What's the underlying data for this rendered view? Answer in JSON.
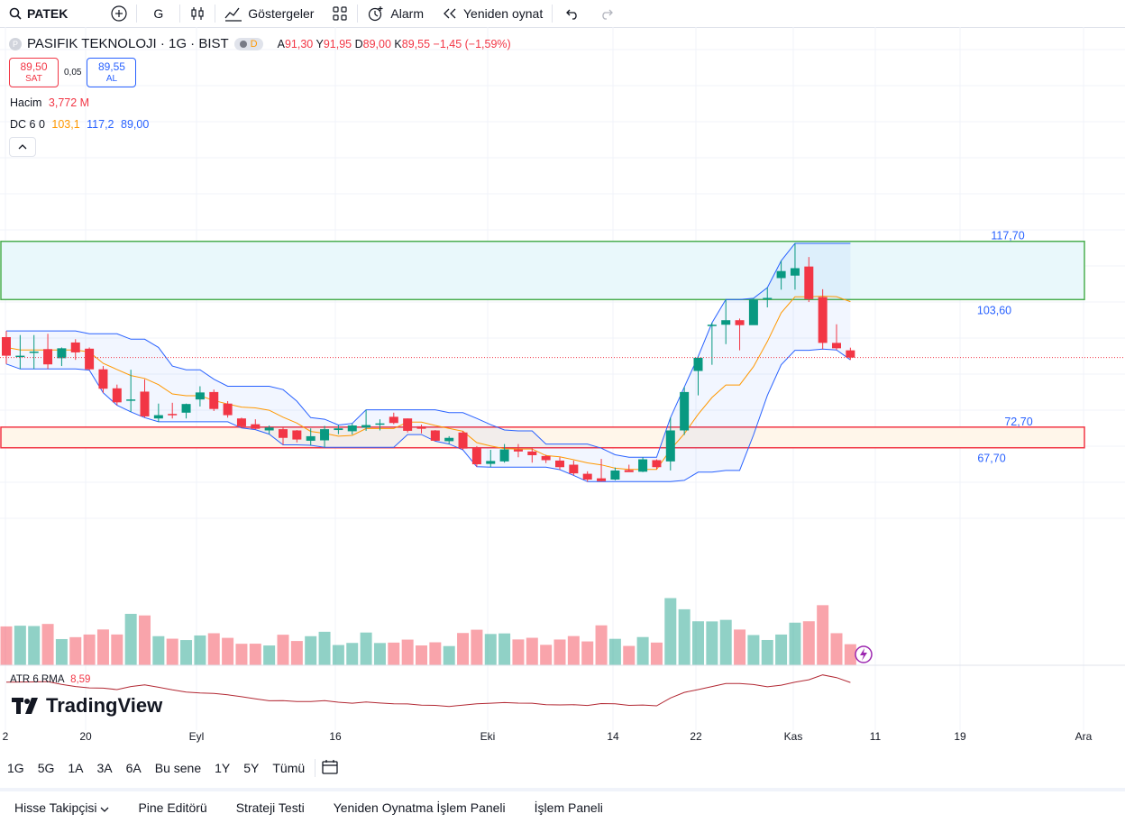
{
  "toolbar": {
    "symbol": "PATEK",
    "interval": "G",
    "indicators_label": "Göstergeler",
    "alarm_label": "Alarm",
    "replay_label": "Yeniden oynat"
  },
  "legend": {
    "title": "PASIFIK TEKNOLOJI · 1G · BIST",
    "status_badge": "D",
    "ohlc_a_label": "A",
    "ohlc_a": "91,30",
    "ohlc_y_label": "Y",
    "ohlc_y": "91,95",
    "ohlc_d_label": "D",
    "ohlc_d": "89,00",
    "ohlc_k_label": "K",
    "ohlc_k": "89,55",
    "change": "−1,45 (−1,59%)",
    "sell_price": "89,50",
    "sell_label": "SAT",
    "spread": "0,05",
    "buy_price": "89,55",
    "buy_label": "AL"
  },
  "volume_legend": {
    "name": "Hacim",
    "value": "3,772 M"
  },
  "dc_legend": {
    "name": "DC 6 0",
    "middle": "103,1",
    "upper": "117,2",
    "lower": "89,00"
  },
  "atr_legend": {
    "name": "ATR 6 RMA",
    "value": "8,59"
  },
  "logo_text": "TradingView",
  "colors": {
    "up": "#089981",
    "down": "#f23645",
    "dc_band": "#2962ff",
    "dc_mid": "#ff9800",
    "atr": "#b22833",
    "zone_green": "#4caf50",
    "zone_red": "#f23645"
  },
  "chart_data": {
    "type": "candlestick",
    "x_tick_labels": [
      "2",
      "20",
      "Eyl",
      "16",
      "Eki",
      "14",
      "22",
      "Kas",
      "11",
      "19",
      "Ara"
    ],
    "candles": [
      {
        "o": 94.5,
        "h": 96.0,
        "l": 88.0,
        "c": 90.0
      },
      {
        "o": 89.7,
        "h": 95.0,
        "l": 86.8,
        "c": 90.0
      },
      {
        "o": 90.9,
        "h": 95.0,
        "l": 86.8,
        "c": 91.0
      },
      {
        "o": 91.6,
        "h": 95.3,
        "l": 86.8,
        "c": 87.9
      },
      {
        "o": 89.4,
        "h": 92.0,
        "l": 87.5,
        "c": 91.8
      },
      {
        "o": 93.2,
        "h": 94.0,
        "l": 89.0,
        "c": 90.8
      },
      {
        "o": 91.7,
        "h": 92.0,
        "l": 86.5,
        "c": 86.7
      },
      {
        "o": 86.7,
        "h": 87.5,
        "l": 81.0,
        "c": 82.0
      },
      {
        "o": 82.1,
        "h": 83.0,
        "l": 78.0,
        "c": 78.7
      },
      {
        "o": 79.2,
        "h": 86.6,
        "l": 76.4,
        "c": 79.4
      },
      {
        "o": 81.3,
        "h": 84.3,
        "l": 75.0,
        "c": 75.3
      },
      {
        "o": 74.8,
        "h": 78.4,
        "l": 74.0,
        "c": 75.6
      },
      {
        "o": 75.9,
        "h": 78.6,
        "l": 74.8,
        "c": 75.6
      },
      {
        "o": 76.2,
        "h": 78.4,
        "l": 74.8,
        "c": 78.3
      },
      {
        "o": 79.4,
        "h": 82.6,
        "l": 77.7,
        "c": 81.1
      },
      {
        "o": 81.2,
        "h": 81.8,
        "l": 76.6,
        "c": 77.1
      },
      {
        "o": 78.4,
        "h": 79.0,
        "l": 75.0,
        "c": 75.6
      },
      {
        "o": 74.8,
        "h": 75.0,
        "l": 72.5,
        "c": 72.9
      },
      {
        "o": 73.4,
        "h": 74.6,
        "l": 72.1,
        "c": 72.3
      },
      {
        "o": 71.9,
        "h": 73.1,
        "l": 71.0,
        "c": 72.6
      },
      {
        "o": 72.2,
        "h": 72.8,
        "l": 68.4,
        "c": 70.1
      },
      {
        "o": 71.9,
        "h": 72.0,
        "l": 69.0,
        "c": 69.7
      },
      {
        "o": 69.4,
        "h": 72.4,
        "l": 68.3,
        "c": 70.5
      },
      {
        "o": 69.5,
        "h": 73.0,
        "l": 67.8,
        "c": 72.2
      },
      {
        "o": 72.0,
        "h": 73.2,
        "l": 71.0,
        "c": 72.4
      },
      {
        "o": 71.7,
        "h": 73.6,
        "l": 70.9,
        "c": 73.1
      },
      {
        "o": 72.6,
        "h": 76.9,
        "l": 71.8,
        "c": 73.2
      },
      {
        "o": 73.3,
        "h": 74.6,
        "l": 71.9,
        "c": 73.6
      },
      {
        "o": 75.2,
        "h": 76.2,
        "l": 73.4,
        "c": 73.7
      },
      {
        "o": 74.8,
        "h": 74.8,
        "l": 71.4,
        "c": 71.8
      },
      {
        "o": 72.9,
        "h": 73.3,
        "l": 71.2,
        "c": 72.3
      },
      {
        "o": 71.9,
        "h": 72.0,
        "l": 69.3,
        "c": 69.4
      },
      {
        "o": 69.3,
        "h": 70.5,
        "l": 68.6,
        "c": 70.1
      },
      {
        "o": 71.4,
        "h": 71.8,
        "l": 67.2,
        "c": 67.5
      },
      {
        "o": 67.8,
        "h": 68.1,
        "l": 63.1,
        "c": 63.7
      },
      {
        "o": 63.8,
        "h": 67.2,
        "l": 63.0,
        "c": 64.5
      },
      {
        "o": 64.4,
        "h": 68.6,
        "l": 64.1,
        "c": 67.3
      },
      {
        "o": 67.3,
        "h": 68.6,
        "l": 65.4,
        "c": 66.8
      },
      {
        "o": 66.8,
        "h": 67.6,
        "l": 64.1,
        "c": 65.9
      },
      {
        "o": 65.7,
        "h": 66.0,
        "l": 64.0,
        "c": 64.7
      },
      {
        "o": 64.6,
        "h": 65.4,
        "l": 62.4,
        "c": 63.0
      },
      {
        "o": 63.6,
        "h": 64.6,
        "l": 61.0,
        "c": 61.5
      },
      {
        "o": 61.4,
        "h": 62.0,
        "l": 59.5,
        "c": 60.0
      },
      {
        "o": 60.3,
        "h": 65.0,
        "l": 59.5,
        "c": 59.6
      },
      {
        "o": 60.0,
        "h": 62.9,
        "l": 59.8,
        "c": 62.2
      },
      {
        "o": 62.3,
        "h": 63.6,
        "l": 61.9,
        "c": 61.8
      },
      {
        "o": 61.9,
        "h": 65.4,
        "l": 61.8,
        "c": 64.9
      },
      {
        "o": 64.7,
        "h": 64.9,
        "l": 62.5,
        "c": 63.0
      },
      {
        "o": 64.4,
        "h": 75.0,
        "l": 62.2,
        "c": 71.9
      },
      {
        "o": 71.9,
        "h": 82.4,
        "l": 70.8,
        "c": 81.2
      },
      {
        "o": 86.3,
        "h": 89.8,
        "l": 80.4,
        "c": 89.5
      },
      {
        "o": 97.5,
        "h": 98.0,
        "l": 87.8,
        "c": 97.5
      },
      {
        "o": 97.5,
        "h": 103.6,
        "l": 92.8,
        "c": 98.6
      },
      {
        "o": 98.6,
        "h": 99.0,
        "l": 91.3,
        "c": 97.4
      },
      {
        "o": 97.4,
        "h": 103.9,
        "l": 97.5,
        "c": 103.6
      },
      {
        "o": 103.7,
        "h": 106.5,
        "l": 101.7,
        "c": 104.0
      },
      {
        "o": 108.8,
        "h": 113.0,
        "l": 106.0,
        "c": 110.5
      },
      {
        "o": 109.4,
        "h": 117.2,
        "l": 106.0,
        "c": 111.2
      },
      {
        "o": 111.6,
        "h": 113.9,
        "l": 103.0,
        "c": 103.7
      },
      {
        "o": 104.2,
        "h": 106.1,
        "l": 91.6,
        "c": 93.1
      },
      {
        "o": 93.1,
        "h": 97.6,
        "l": 91.4,
        "c": 91.8
      },
      {
        "o": 91.3,
        "h": 91.95,
        "l": 89.0,
        "c": 89.55
      }
    ],
    "volume_labels": {
      "value": "3,772 M"
    },
    "price_labels": [
      "117,70",
      "103,60",
      "72,70",
      "67,70"
    ],
    "zones": [
      {
        "name": "resistance",
        "top": 117.7,
        "bottom": 103.6
      },
      {
        "name": "support",
        "top": 72.7,
        "bottom": 67.7
      }
    ]
  },
  "range_buttons": [
    "1G",
    "5G",
    "1A",
    "3A",
    "6A",
    "Bu sene",
    "1Y",
    "5Y",
    "Tümü"
  ],
  "bottom_tabs": [
    "Hisse Takipçisi",
    "Pine Editörü",
    "Strateji Testi",
    "Yeniden Oynatma İşlem Paneli",
    "İşlem Paneli"
  ]
}
